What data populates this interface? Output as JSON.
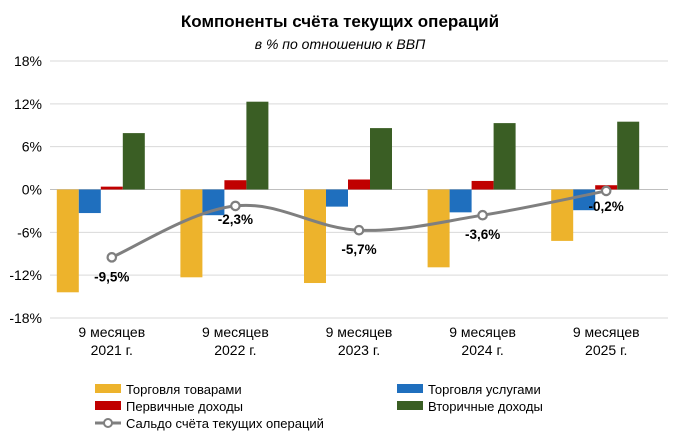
{
  "chart_data": {
    "type": "bar",
    "title": "Компоненты счёта текущих операций",
    "subtitle": "в % по отношению к ВВП",
    "categories": [
      [
        "9 месяцев",
        "2021 г."
      ],
      [
        "9 месяцев",
        "2022 г."
      ],
      [
        "9 месяцев",
        "2023 г."
      ],
      [
        "9 месяцев",
        "2024 г."
      ],
      [
        "9 месяцев",
        "2025 г."
      ]
    ],
    "ylim": [
      -18,
      18
    ],
    "yticks": [
      18,
      12,
      6,
      0,
      -6,
      -12,
      -18
    ],
    "ytick_labels": [
      "18%",
      "12%",
      "6%",
      "0%",
      "-6%",
      "-12%",
      "-18%"
    ],
    "grid": true,
    "series": [
      {
        "name": "Торговля товарами",
        "kind": "bar",
        "color": "#EDB32C",
        "values": [
          -14.4,
          -12.3,
          -13.1,
          -10.9,
          -7.2
        ]
      },
      {
        "name": "Торговля услугами",
        "kind": "bar",
        "color": "#1F6FBE",
        "values": [
          -3.3,
          -3.6,
          -2.4,
          -3.2,
          -2.9
        ]
      },
      {
        "name": "Первичные доходы",
        "kind": "bar",
        "color": "#C00000",
        "values": [
          0.4,
          1.3,
          1.4,
          1.2,
          0.6
        ]
      },
      {
        "name": "Вторичные доходы",
        "kind": "bar",
        "color": "#3A5E24",
        "values": [
          7.9,
          12.3,
          8.6,
          9.3,
          9.5
        ]
      },
      {
        "name": "Сальдо счёта текущих операций",
        "kind": "line",
        "color": "#7F7F7F",
        "values": [
          -9.5,
          -2.3,
          -5.7,
          -3.6,
          -0.2
        ]
      }
    ],
    "data_labels": [
      "-9,5%",
      "-2,3%",
      "-5,7%",
      "-3,6%",
      "-0,2%"
    ],
    "legend": "bottom"
  }
}
